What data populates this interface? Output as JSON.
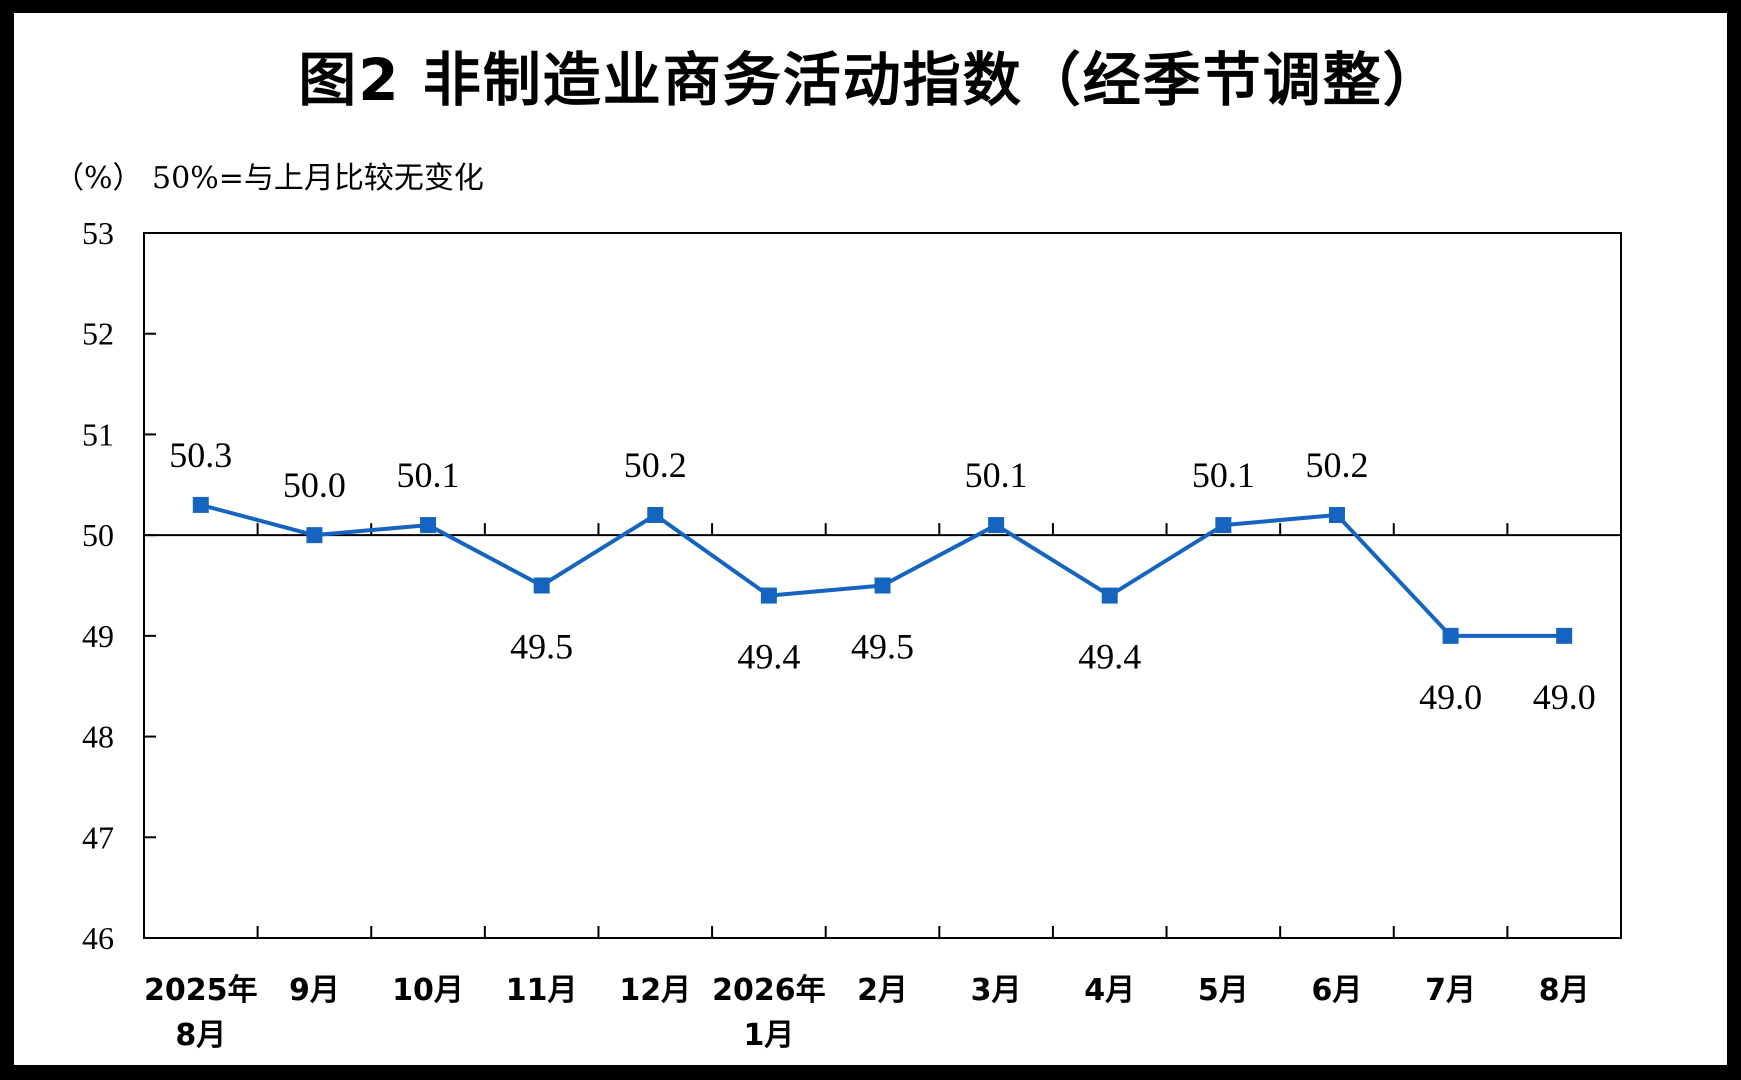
{
  "title": "图2  非制造业商务活动指数（经季节调整）",
  "subtitle": "（%）  50%=与上月比较无变化",
  "chart_data": {
    "type": "line",
    "title": "图2  非制造业商务活动指数（经季节调整）",
    "ylabel": "（%）",
    "reference_line": 50,
    "reference_note": "50%=与上月比较无变化",
    "ylim": [
      46,
      53
    ],
    "yticks": [
      "46",
      "47",
      "48",
      "49",
      "50",
      "51",
      "52",
      "53"
    ],
    "categories": [
      [
        "2025年",
        "8月"
      ],
      [
        "9月"
      ],
      [
        "10月"
      ],
      [
        "11月"
      ],
      [
        "12月"
      ],
      [
        "2026年",
        "1月"
      ],
      [
        "2月"
      ],
      [
        "3月"
      ],
      [
        "4月"
      ],
      [
        "5月"
      ],
      [
        "6月"
      ],
      [
        "7月"
      ],
      [
        "8月"
      ]
    ],
    "values": [
      50.3,
      50.0,
      50.1,
      49.5,
      50.2,
      49.4,
      49.5,
      50.1,
      49.4,
      50.1,
      50.2,
      49.0,
      49.0
    ],
    "value_labels": [
      "50.3",
      "50.0",
      "50.1",
      "49.5",
      "50.2",
      "49.4",
      "49.5",
      "50.1",
      "49.4",
      "50.1",
      "50.2",
      "49.0",
      "49.0"
    ],
    "label_positions": [
      "above",
      "above",
      "above",
      "below",
      "above",
      "below",
      "below",
      "above",
      "below",
      "above",
      "above",
      "below",
      "below"
    ],
    "series_color": "#1565c0",
    "grid": false,
    "legend": "none"
  }
}
